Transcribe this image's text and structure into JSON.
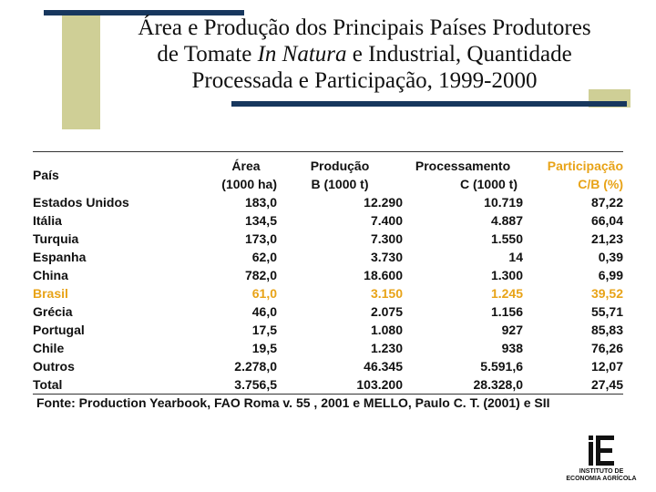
{
  "colors": {
    "accent_navy": "#17375e",
    "accent_olive": "#cfcf96",
    "highlight": "#e8a317"
  },
  "slide": {
    "title_line1": "Área e Produção dos Principais Países Produtores",
    "title_line2_a": "de Tomate ",
    "title_line2_em": "In Natura",
    "title_line2_b": " e Industrial, Quantidade",
    "title_line3": "Processada e Participação, 1999-2000"
  },
  "table": {
    "headers": {
      "pais": "País",
      "area_1": "Área",
      "area_2": "(1000 ha)",
      "producao_1": "Produção",
      "producao_2": "B (1000 t)",
      "processamento_1": "Processamento",
      "processamento_2": "C (1000 t)",
      "participacao_1": "Participação",
      "participacao_2": "C/B (%)"
    },
    "rows": [
      {
        "pais": "Estados Unidos",
        "area": "183,0",
        "producao": "12.290",
        "processamento": "10.719",
        "participacao": "87,22"
      },
      {
        "pais": "Itália",
        "area": "134,5",
        "producao": "7.400",
        "processamento": "4.887",
        "participacao": "66,04"
      },
      {
        "pais": "Turquia",
        "area": "173,0",
        "producao": "7.300",
        "processamento": "1.550",
        "participacao": "21,23"
      },
      {
        "pais": "Espanha",
        "area": "62,0",
        "producao": "3.730",
        "processamento": "14",
        "participacao": "0,39"
      },
      {
        "pais": "China",
        "area": "782,0",
        "producao": "18.600",
        "processamento": "1.300",
        "participacao": "6,99"
      },
      {
        "pais": "Brasil",
        "area": "61,0",
        "producao": "3.150",
        "processamento": "1.245",
        "participacao": "39,52",
        "highlight": true
      },
      {
        "pais": "Grécia",
        "area": "46,0",
        "producao": "2.075",
        "processamento": "1.156",
        "participacao": "55,71"
      },
      {
        "pais": "Portugal",
        "area": "17,5",
        "producao": "1.080",
        "processamento": "927",
        "participacao": "85,83"
      },
      {
        "pais": "Chile",
        "area": "19,5",
        "producao": "1.230",
        "processamento": "938",
        "participacao": "76,26"
      },
      {
        "pais": "Outros",
        "area": "2.278,0",
        "producao": "46.345",
        "processamento": "5.591,6",
        "participacao": "12,07"
      }
    ],
    "total": {
      "pais": "Total",
      "area": "3.756,5",
      "producao": "103.200",
      "processamento": "28.328,0",
      "participacao": "27,45"
    },
    "source": "Fonte: Production Yearbook, FAO Roma v. 55 , 2001 e MELLO, Paulo C. T. (2001) e SII"
  },
  "logo": {
    "icon": "ieg-logo-icon",
    "line1": "INSTITUTO DE",
    "line2": "ECONOMIA AGRÍCOLA"
  }
}
